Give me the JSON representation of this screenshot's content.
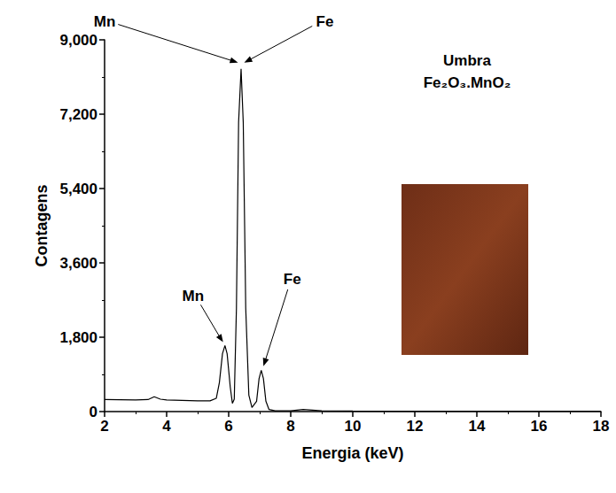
{
  "chart_data": {
    "type": "line",
    "title": "Umbra",
    "subtitle": "Fe₂O₃.MnO₂",
    "x_label": "Energia (keV)",
    "y_label": "Contagens",
    "series": [
      {
        "name": "Umbra",
        "color": "#000000",
        "x": [
          2.0,
          2.5,
          3.0,
          3.4,
          3.6,
          3.8,
          4.0,
          4.5,
          5.0,
          5.4,
          5.6,
          5.7,
          5.8,
          5.88,
          5.95,
          6.05,
          6.12,
          6.18,
          6.25,
          6.32,
          6.4,
          6.47,
          6.55,
          6.65,
          6.75,
          6.9,
          6.98,
          7.05,
          7.12,
          7.2,
          7.3,
          7.5,
          8.0,
          8.4,
          8.6,
          9.0,
          10.0,
          12.0,
          14.0,
          16.0,
          18.0
        ],
        "values": [
          290,
          285,
          280,
          290,
          360,
          300,
          280,
          270,
          260,
          260,
          320,
          700,
          1400,
          1600,
          1400,
          600,
          200,
          300,
          2500,
          7000,
          8300,
          7000,
          2500,
          400,
          100,
          250,
          800,
          1000,
          800,
          250,
          50,
          20,
          20,
          50,
          40,
          20,
          15,
          10,
          10,
          10,
          10
        ]
      }
    ],
    "xlim": [
      2,
      18
    ],
    "xticks": [
      2,
      4,
      6,
      8,
      10,
      12,
      14,
      16,
      18
    ],
    "ylim": [
      0,
      9000
    ],
    "yticks": [
      0,
      1800,
      3600,
      5400,
      7200,
      9000
    ],
    "grid": false,
    "annotations": [
      {
        "text": "Mn",
        "x": 2.0,
        "y": 9450,
        "arrow_x": 6.3,
        "arrow_y": 8450
      },
      {
        "text": "Fe",
        "x": 9.1,
        "y": 9450,
        "arrow_x": 6.5,
        "arrow_y": 8450
      },
      {
        "text": "Mn",
        "x": 4.85,
        "y": 2800,
        "arrow_x": 5.82,
        "arrow_y": 1680
      },
      {
        "text": "Fe",
        "x": 8.05,
        "y": 3200,
        "arrow_x": 7.12,
        "arrow_y": 1100
      }
    ]
  }
}
